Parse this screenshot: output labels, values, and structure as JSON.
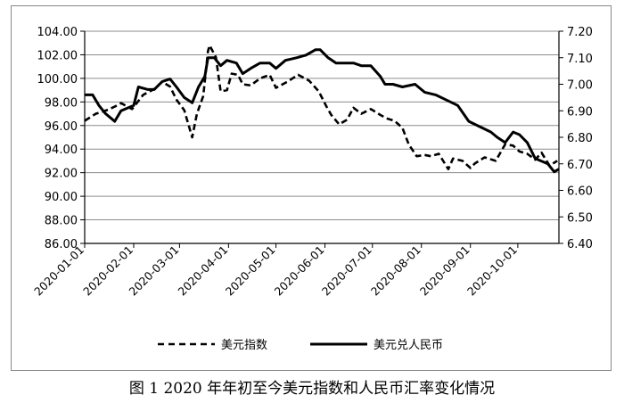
{
  "caption": "图 1 2020 年年初至今美元指数和人民币汇率变化情况",
  "chart_data": {
    "type": "line",
    "x_tick_labels": [
      "2020-01-01",
      "2020-02-01",
      "2020-03-01",
      "2020-04-01",
      "2020-05-01",
      "2020-06-01",
      "2020-07-01",
      "2020-08-01",
      "2020-09-01",
      "2020-10-01"
    ],
    "x_range": [
      "2020-01-01",
      "2020-10-27"
    ],
    "y_left": {
      "min": 86,
      "max": 104,
      "step": 2,
      "tick_labels": [
        "86.00",
        "88.00",
        "90.00",
        "92.00",
        "94.00",
        "96.00",
        "98.00",
        "100.00",
        "102.00",
        "104.00"
      ]
    },
    "y_right": {
      "min": 6.4,
      "max": 7.2,
      "step": 0.1,
      "tick_labels": [
        "6.40",
        "6.50",
        "6.60",
        "6.70",
        "6.80",
        "6.90",
        "7.00",
        "7.10",
        "7.20"
      ]
    },
    "grid": "horizontal",
    "legend_position": "bottom",
    "series": [
      {
        "name": "美元指数",
        "axis": "left",
        "style": "dashed",
        "points": [
          [
            "2020-01-01",
            96.4
          ],
          [
            "2020-01-08",
            97.0
          ],
          [
            "2020-01-15",
            97.3
          ],
          [
            "2020-01-20",
            97.6
          ],
          [
            "2020-01-24",
            97.9
          ],
          [
            "2020-01-31",
            97.4
          ],
          [
            "2020-02-07",
            98.6
          ],
          [
            "2020-02-14",
            99.1
          ],
          [
            "2020-02-19",
            99.7
          ],
          [
            "2020-02-24",
            99.3
          ],
          [
            "2020-02-28",
            98.2
          ],
          [
            "2020-03-04",
            97.3
          ],
          [
            "2020-03-09",
            95.0
          ],
          [
            "2020-03-12",
            97.0
          ],
          [
            "2020-03-16",
            98.5
          ],
          [
            "2020-03-19",
            102.3
          ],
          [
            "2020-03-20",
            102.8
          ],
          [
            "2020-03-24",
            101.8
          ],
          [
            "2020-03-27",
            98.9
          ],
          [
            "2020-03-31",
            99.0
          ],
          [
            "2020-04-03",
            100.4
          ],
          [
            "2020-04-07",
            100.3
          ],
          [
            "2020-04-10",
            99.5
          ],
          [
            "2020-04-15",
            99.4
          ],
          [
            "2020-04-21",
            100.0
          ],
          [
            "2020-04-27",
            100.3
          ],
          [
            "2020-05-01",
            99.2
          ],
          [
            "2020-05-08",
            99.7
          ],
          [
            "2020-05-15",
            100.3
          ],
          [
            "2020-05-22",
            99.8
          ],
          [
            "2020-05-28",
            98.9
          ],
          [
            "2020-06-02",
            97.6
          ],
          [
            "2020-06-05",
            96.9
          ],
          [
            "2020-06-10",
            96.1
          ],
          [
            "2020-06-15",
            96.5
          ],
          [
            "2020-06-19",
            97.5
          ],
          [
            "2020-06-24",
            97.0
          ],
          [
            "2020-06-30",
            97.4
          ],
          [
            "2020-07-06",
            96.9
          ],
          [
            "2020-07-10",
            96.6
          ],
          [
            "2020-07-15",
            96.4
          ],
          [
            "2020-07-20",
            95.8
          ],
          [
            "2020-07-24",
            94.4
          ],
          [
            "2020-07-29",
            93.4
          ],
          [
            "2020-08-03",
            93.5
          ],
          [
            "2020-08-07",
            93.4
          ],
          [
            "2020-08-12",
            93.6
          ],
          [
            "2020-08-18",
            92.3
          ],
          [
            "2020-08-21",
            93.2
          ],
          [
            "2020-08-27",
            93.0
          ],
          [
            "2020-09-01",
            92.4
          ],
          [
            "2020-09-04",
            92.8
          ],
          [
            "2020-09-10",
            93.3
          ],
          [
            "2020-09-17",
            93.0
          ],
          [
            "2020-09-23",
            94.4
          ],
          [
            "2020-09-28",
            94.3
          ],
          [
            "2020-10-02",
            93.8
          ],
          [
            "2020-10-07",
            93.6
          ],
          [
            "2020-10-12",
            93.1
          ],
          [
            "2020-10-16",
            93.7
          ],
          [
            "2020-10-21",
            92.6
          ],
          [
            "2020-10-26",
            93.0
          ]
        ]
      },
      {
        "name": "美元兑人民币",
        "axis": "right",
        "style": "solid",
        "points": [
          [
            "2020-01-01",
            6.96
          ],
          [
            "2020-01-06",
            6.96
          ],
          [
            "2020-01-10",
            6.92
          ],
          [
            "2020-01-14",
            6.89
          ],
          [
            "2020-01-20",
            6.86
          ],
          [
            "2020-01-24",
            6.9
          ],
          [
            "2020-02-01",
            6.92
          ],
          [
            "2020-02-04",
            6.99
          ],
          [
            "2020-02-10",
            6.98
          ],
          [
            "2020-02-14",
            6.98
          ],
          [
            "2020-02-19",
            7.01
          ],
          [
            "2020-02-24",
            7.02
          ],
          [
            "2020-02-28",
            6.99
          ],
          [
            "2020-03-04",
            6.95
          ],
          [
            "2020-03-09",
            6.93
          ],
          [
            "2020-03-13",
            6.99
          ],
          [
            "2020-03-17",
            7.03
          ],
          [
            "2020-03-19",
            7.1
          ],
          [
            "2020-03-23",
            7.1
          ],
          [
            "2020-03-27",
            7.07
          ],
          [
            "2020-03-31",
            7.09
          ],
          [
            "2020-04-06",
            7.08
          ],
          [
            "2020-04-10",
            7.04
          ],
          [
            "2020-04-15",
            7.06
          ],
          [
            "2020-04-21",
            7.08
          ],
          [
            "2020-04-27",
            7.08
          ],
          [
            "2020-05-01",
            7.06
          ],
          [
            "2020-05-07",
            7.09
          ],
          [
            "2020-05-14",
            7.1
          ],
          [
            "2020-05-20",
            7.11
          ],
          [
            "2020-05-26",
            7.13
          ],
          [
            "2020-05-29",
            7.13
          ],
          [
            "2020-06-03",
            7.1
          ],
          [
            "2020-06-08",
            7.08
          ],
          [
            "2020-06-12",
            7.08
          ],
          [
            "2020-06-19",
            7.08
          ],
          [
            "2020-06-24",
            7.07
          ],
          [
            "2020-06-30",
            7.07
          ],
          [
            "2020-07-06",
            7.03
          ],
          [
            "2020-07-09",
            7.0
          ],
          [
            "2020-07-14",
            7.0
          ],
          [
            "2020-07-20",
            6.99
          ],
          [
            "2020-07-28",
            7.0
          ],
          [
            "2020-08-03",
            6.97
          ],
          [
            "2020-08-10",
            6.96
          ],
          [
            "2020-08-17",
            6.94
          ],
          [
            "2020-08-24",
            6.92
          ],
          [
            "2020-08-31",
            6.86
          ],
          [
            "2020-09-07",
            6.84
          ],
          [
            "2020-09-14",
            6.82
          ],
          [
            "2020-09-18",
            6.8
          ],
          [
            "2020-09-23",
            6.78
          ],
          [
            "2020-09-28",
            6.82
          ],
          [
            "2020-10-02",
            6.81
          ],
          [
            "2020-10-07",
            6.78
          ],
          [
            "2020-10-12",
            6.72
          ],
          [
            "2020-10-16",
            6.71
          ],
          [
            "2020-10-20",
            6.7
          ],
          [
            "2020-10-24",
            6.67
          ],
          [
            "2020-10-27",
            6.68
          ]
        ]
      }
    ]
  }
}
